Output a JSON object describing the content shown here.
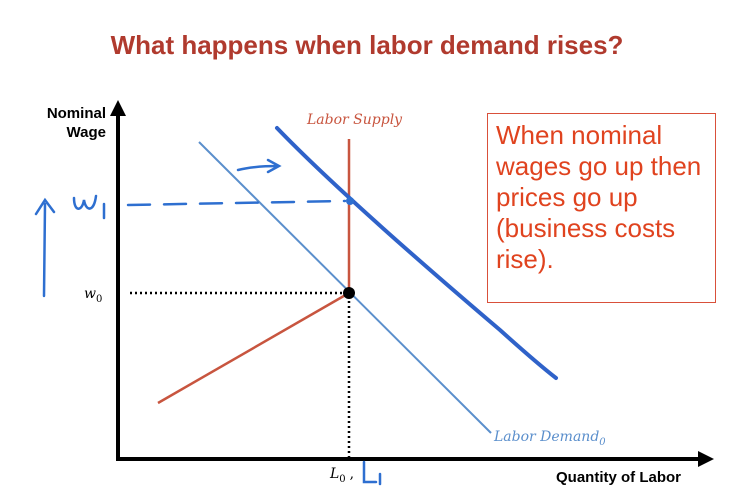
{
  "slide": {
    "title": "What happens when labor demand rises?"
  },
  "axes": {
    "y_label_line1": "Nominal",
    "y_label_line2": "Wage",
    "x_label": "Quantity of Labor"
  },
  "curves": {
    "supply_label": "Labor Supply",
    "demand_label": "Labor Demand",
    "demand_subscript": "0"
  },
  "markers": {
    "w0_main": "w",
    "w0_sub": "0",
    "L0_main": "L",
    "L0_sub": "0",
    "L_sep": ","
  },
  "callout": {
    "text": "When nominal wages go up then prices go up (business costs rise)."
  },
  "colors": {
    "title": "#b03a2e",
    "supply": "#c8553f",
    "demand": "#5b8fcc",
    "new_demand": "#2f62c9",
    "callout_text": "#e0431f",
    "handwriting": "#2e6fd0"
  }
}
